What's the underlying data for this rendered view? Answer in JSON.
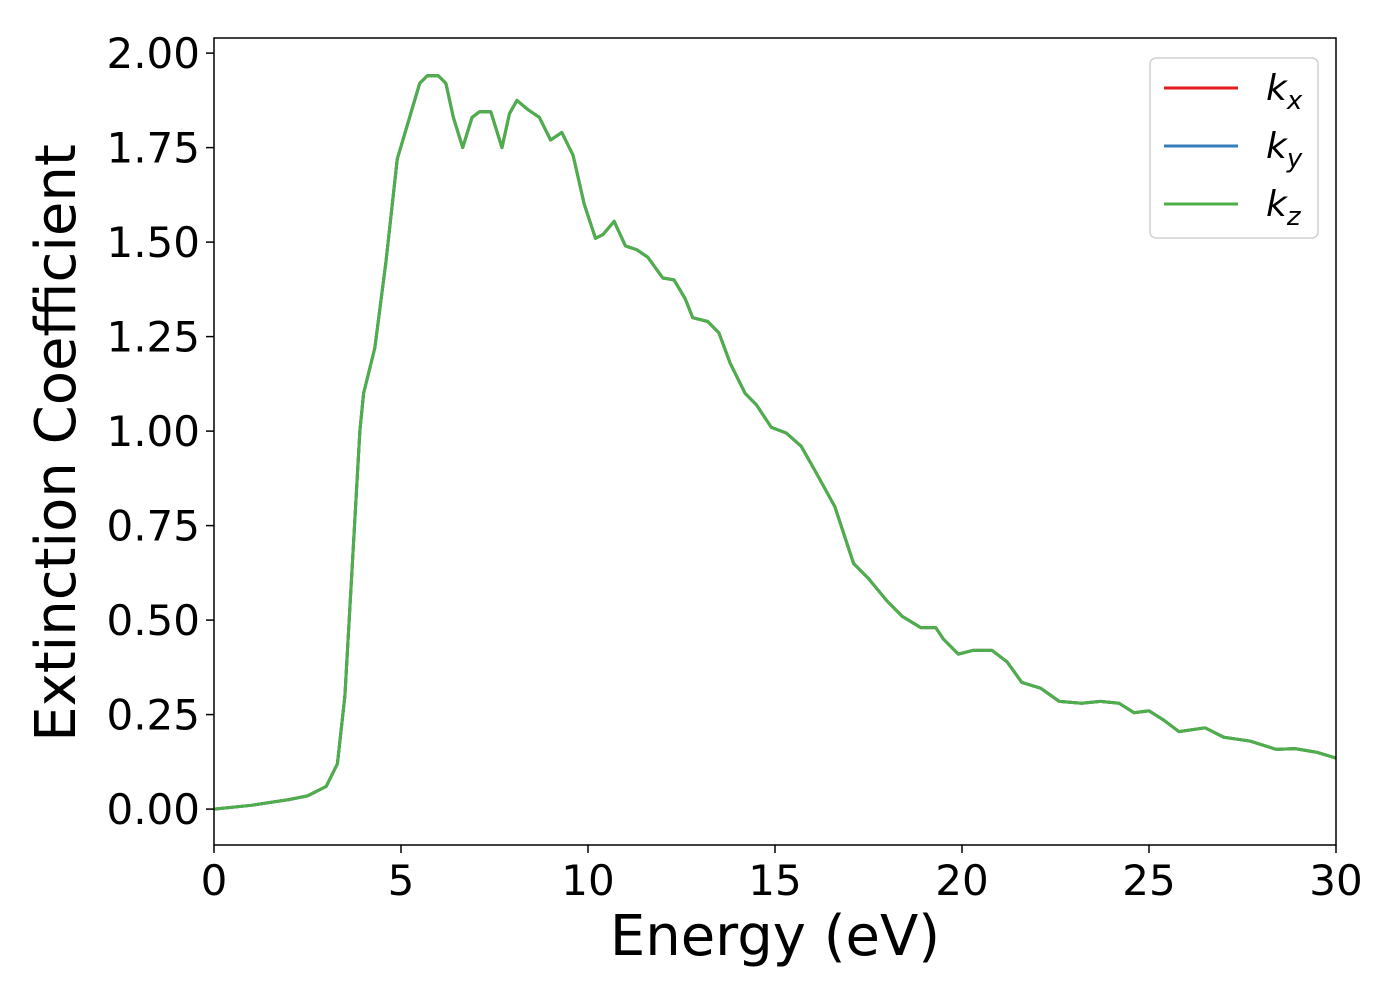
{
  "chart_data": {
    "type": "line",
    "xlabel": "Energy (eV)",
    "ylabel": "Extinction Coefficient",
    "x": [
      0,
      1,
      2,
      2.5,
      3,
      3.3,
      3.5,
      3.7,
      3.9,
      4.0,
      4.3,
      4.6,
      4.9,
      5.2,
      5.5,
      5.7,
      6.0,
      6.2,
      6.4,
      6.65,
      6.9,
      7.1,
      7.4,
      7.7,
      7.9,
      8.1,
      8.4,
      8.7,
      9.0,
      9.3,
      9.6,
      9.9,
      10.2,
      10.4,
      10.7,
      11.0,
      11.3,
      11.6,
      12.0,
      12.3,
      12.6,
      12.8,
      13.2,
      13.5,
      13.8,
      14.2,
      14.5,
      14.9,
      15.3,
      15.7,
      16.1,
      16.6,
      17.1,
      17.5,
      18.0,
      18.4,
      18.9,
      19.3,
      19.5,
      19.9,
      20.3,
      20.8,
      21.2,
      21.6,
      22.1,
      22.6,
      23.2,
      23.7,
      24.2,
      24.6,
      25.0,
      25.4,
      25.8,
      26.5,
      27.0,
      27.7,
      28.4,
      28.9,
      29.5,
      30
    ],
    "series": [
      {
        "name": "kx",
        "color": "#e41a1c",
        "values": [
          0,
          0.01,
          0.025,
          0.035,
          0.06,
          0.12,
          0.3,
          0.65,
          1.0,
          1.1,
          1.22,
          1.45,
          1.72,
          1.82,
          1.92,
          1.94,
          1.94,
          1.92,
          1.83,
          1.75,
          1.83,
          1.845,
          1.845,
          1.75,
          1.84,
          1.875,
          1.85,
          1.83,
          1.77,
          1.79,
          1.73,
          1.6,
          1.51,
          1.52,
          1.555,
          1.49,
          1.48,
          1.46,
          1.405,
          1.4,
          1.35,
          1.3,
          1.29,
          1.26,
          1.18,
          1.1,
          1.07,
          1.01,
          0.995,
          0.96,
          0.89,
          0.8,
          0.65,
          0.61,
          0.55,
          0.51,
          0.48,
          0.48,
          0.45,
          0.41,
          0.42,
          0.42,
          0.39,
          0.335,
          0.32,
          0.285,
          0.28,
          0.285,
          0.28,
          0.255,
          0.26,
          0.235,
          0.205,
          0.215,
          0.19,
          0.18,
          0.158,
          0.16,
          0.15,
          0.135
        ]
      },
      {
        "name": "ky",
        "color": "#377eb8",
        "values": [
          0,
          0.01,
          0.025,
          0.035,
          0.06,
          0.12,
          0.3,
          0.65,
          1.0,
          1.1,
          1.22,
          1.45,
          1.72,
          1.82,
          1.92,
          1.94,
          1.94,
          1.92,
          1.83,
          1.75,
          1.83,
          1.845,
          1.845,
          1.75,
          1.84,
          1.875,
          1.85,
          1.83,
          1.77,
          1.79,
          1.73,
          1.6,
          1.51,
          1.52,
          1.555,
          1.49,
          1.48,
          1.46,
          1.405,
          1.4,
          1.35,
          1.3,
          1.29,
          1.26,
          1.18,
          1.1,
          1.07,
          1.01,
          0.995,
          0.96,
          0.89,
          0.8,
          0.65,
          0.61,
          0.55,
          0.51,
          0.48,
          0.48,
          0.45,
          0.41,
          0.42,
          0.42,
          0.39,
          0.335,
          0.32,
          0.285,
          0.28,
          0.285,
          0.28,
          0.255,
          0.26,
          0.235,
          0.205,
          0.215,
          0.19,
          0.18,
          0.158,
          0.16,
          0.15,
          0.135
        ]
      },
      {
        "name": "kz",
        "color": "#4daf4a",
        "values": [
          0,
          0.01,
          0.025,
          0.035,
          0.06,
          0.12,
          0.3,
          0.65,
          1.0,
          1.1,
          1.22,
          1.45,
          1.72,
          1.82,
          1.92,
          1.94,
          1.94,
          1.92,
          1.83,
          1.75,
          1.83,
          1.845,
          1.845,
          1.75,
          1.84,
          1.875,
          1.85,
          1.83,
          1.77,
          1.79,
          1.73,
          1.6,
          1.51,
          1.52,
          1.555,
          1.49,
          1.48,
          1.46,
          1.405,
          1.4,
          1.35,
          1.3,
          1.29,
          1.26,
          1.18,
          1.1,
          1.07,
          1.01,
          0.995,
          0.96,
          0.89,
          0.8,
          0.65,
          0.61,
          0.55,
          0.51,
          0.48,
          0.48,
          0.45,
          0.41,
          0.42,
          0.42,
          0.39,
          0.335,
          0.32,
          0.285,
          0.28,
          0.285,
          0.28,
          0.255,
          0.26,
          0.235,
          0.205,
          0.215,
          0.19,
          0.18,
          0.158,
          0.16,
          0.15,
          0.135
        ]
      }
    ],
    "xlim": [
      0,
      30
    ],
    "xticks": [
      0,
      5,
      10,
      15,
      20,
      25,
      30
    ],
    "ylim": [
      -0.095,
      2.04
    ],
    "yticks": [
      {
        "value": 0,
        "label": "0.00"
      },
      {
        "value": 0.25,
        "label": "0.25"
      },
      {
        "value": 0.5,
        "label": "0.50"
      },
      {
        "value": 0.75,
        "label": "0.75"
      },
      {
        "value": 1,
        "label": "1.00"
      },
      {
        "value": 1.25,
        "label": "1.25"
      },
      {
        "value": 1.5,
        "label": "1.50"
      },
      {
        "value": 1.75,
        "label": "1.75"
      },
      {
        "value": 2,
        "label": "2.00"
      }
    ],
    "legend": "upper right",
    "grid": false
  }
}
